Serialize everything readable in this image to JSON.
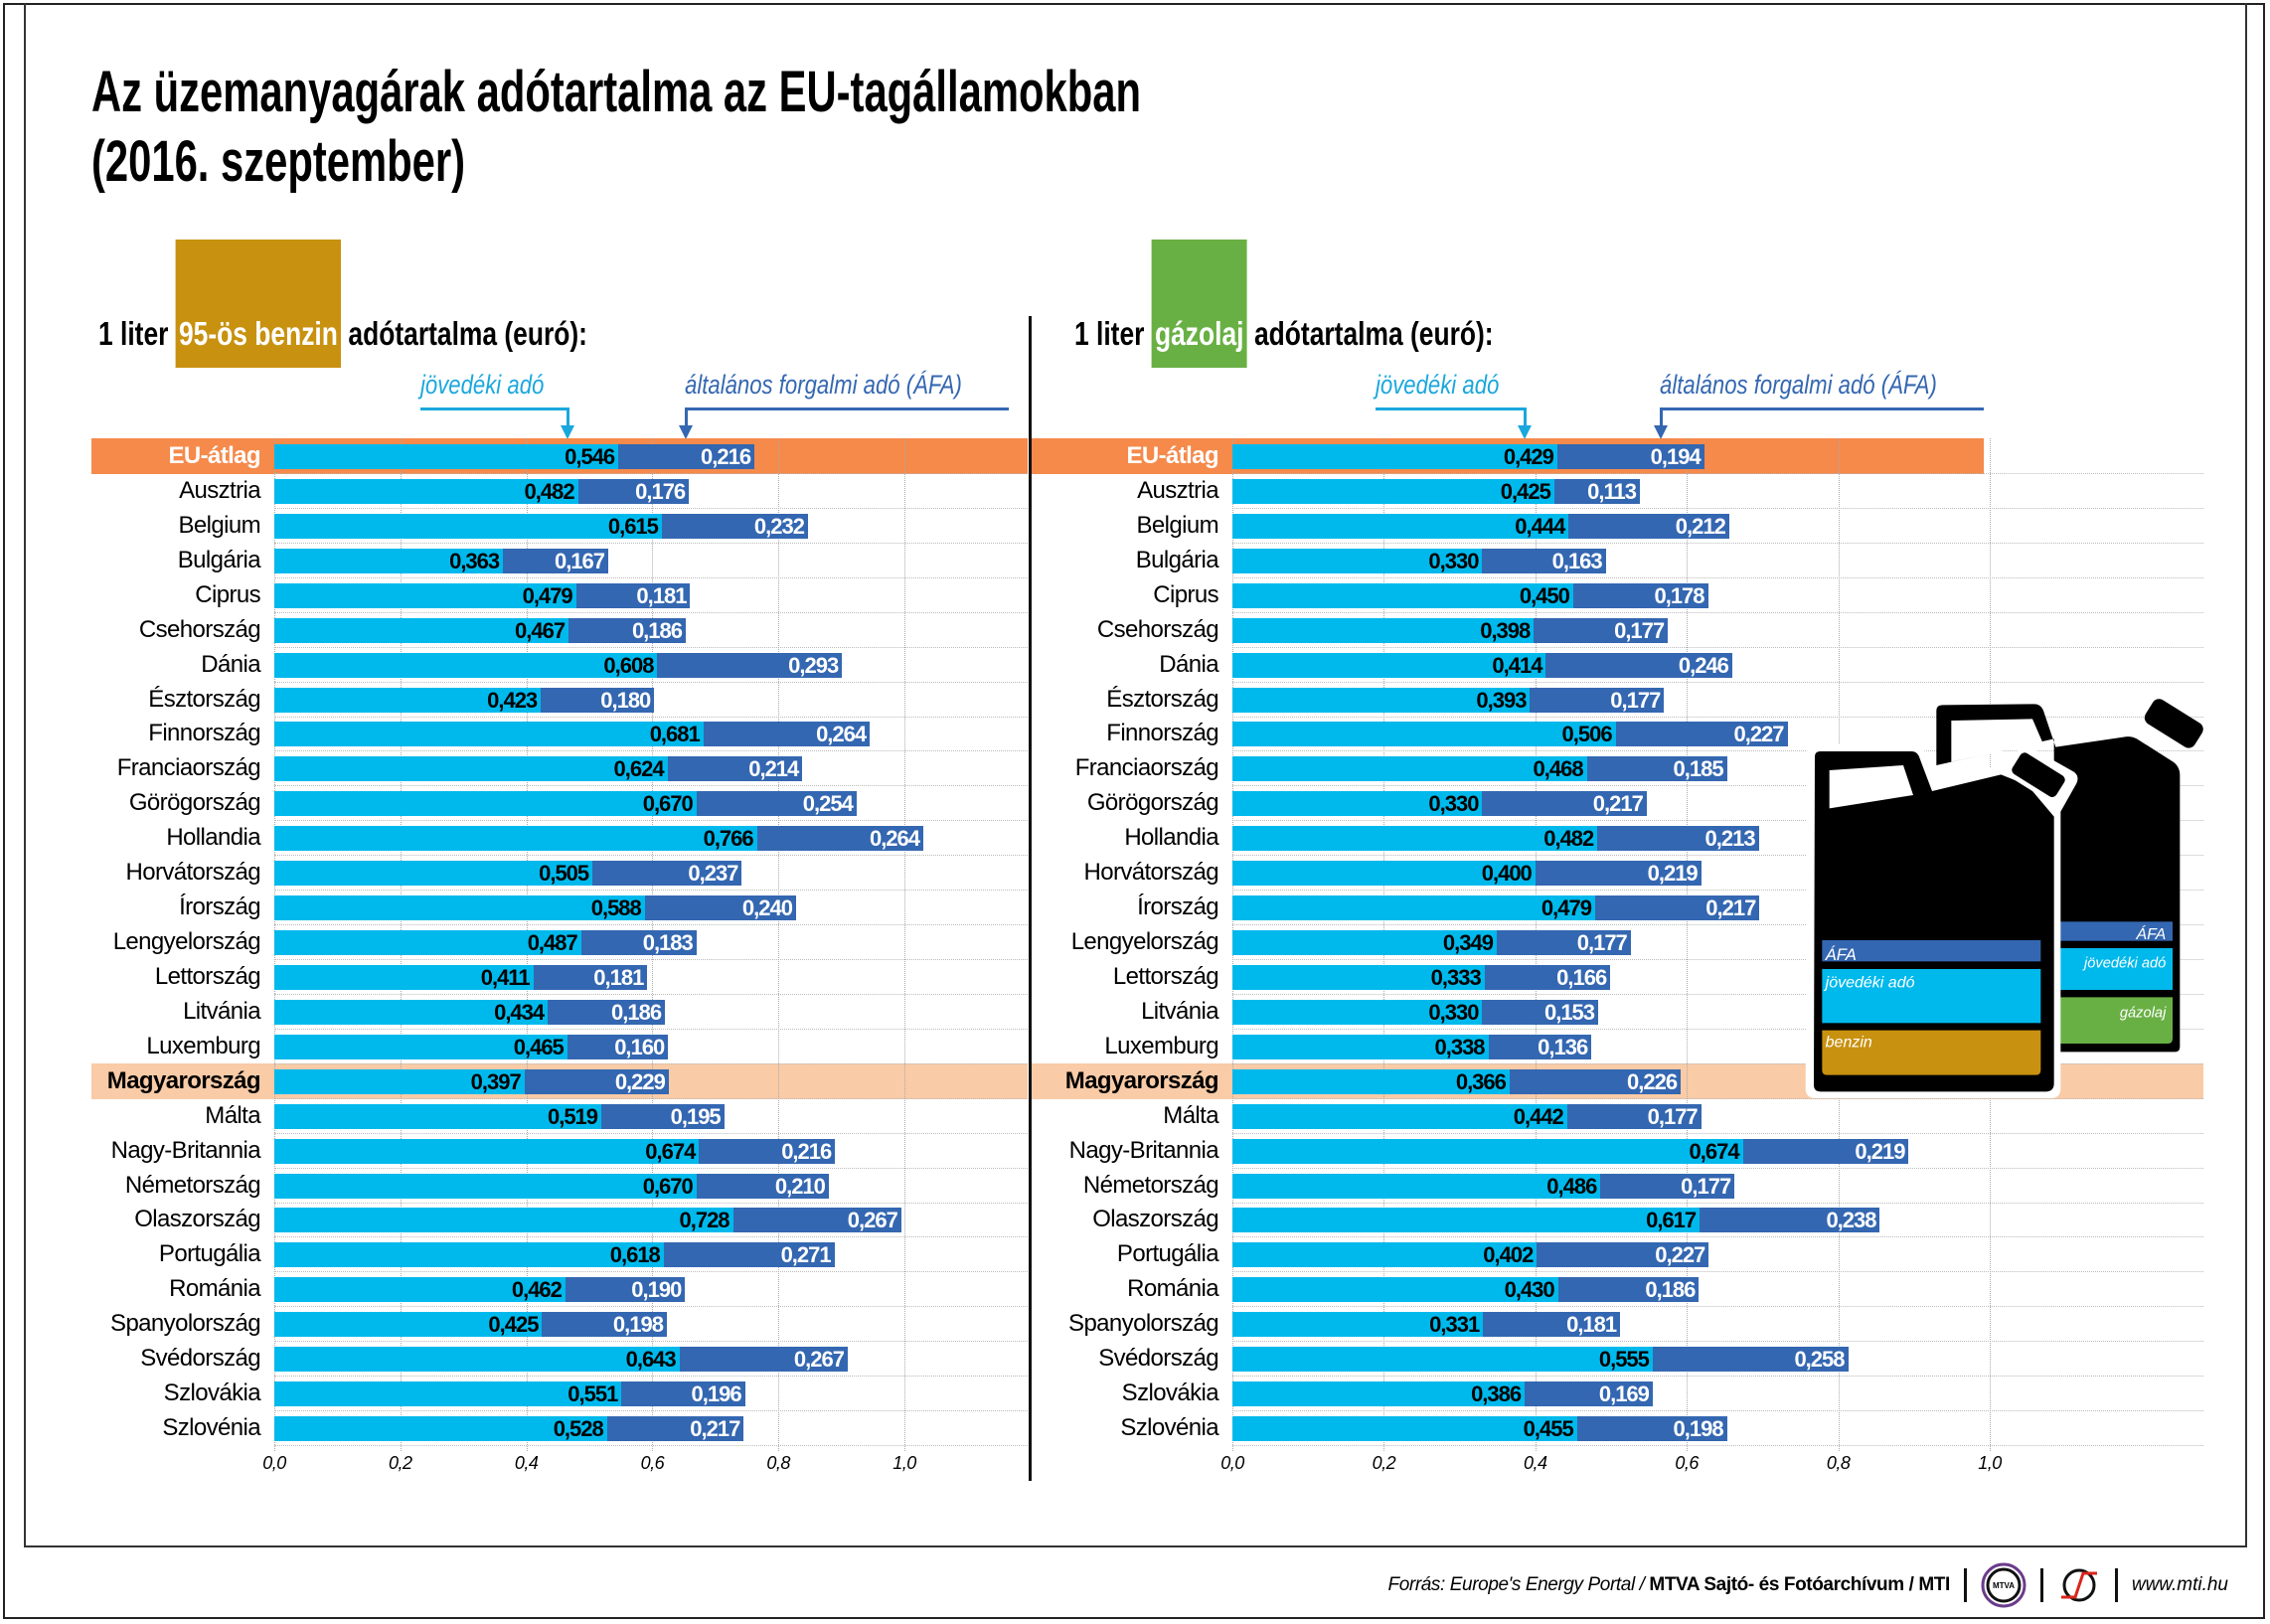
{
  "title": {
    "line1": "Az üzemanyagárak adótartalma az EU-tagállamokban",
    "line2": "(2016. szeptember)"
  },
  "colors": {
    "excise": "#00b9ec",
    "vat": "#3467b1",
    "eu_band": "#f58a4b",
    "hungary_band": "#f9cba7",
    "benzin": "#c8910f",
    "gazolaj": "#69b044",
    "legend_excise_text": "#1aa7dd"
  },
  "legend": {
    "excise": "jövedéki adó",
    "vat": "általános forgalmi adó (ÁFA)"
  },
  "jerrycans": {
    "front": {
      "vat": "ÁFA",
      "excise": "jövedéki adó",
      "fuel": "benzin"
    },
    "back": {
      "vat": "ÁFA",
      "excise": "jövedéki adó",
      "fuel": "gázolaj"
    }
  },
  "chart_data": [
    {
      "type": "bar",
      "stacked": true,
      "orientation": "horizontal",
      "title_prefix": "1 liter",
      "title_highlight": "95-ös benzin",
      "title_suffix": "adótartalma (euró):",
      "xlim": [
        0,
        1.0
      ],
      "xticks": [
        "0,0",
        "0,2",
        "0,4",
        "0,6",
        "0,8",
        "1,0"
      ],
      "grid": true,
      "highlight_rows": {
        "EU-átlag": "orange",
        "Magyarország": "peach"
      },
      "categories": [
        "EU-átlag",
        "Ausztria",
        "Belgium",
        "Bulgária",
        "Ciprus",
        "Csehország",
        "Dánia",
        "Észtország",
        "Finnország",
        "Franciaország",
        "Görögország",
        "Hollandia",
        "Horvátország",
        "Írország",
        "Lengyelország",
        "Lettország",
        "Litvánia",
        "Luxemburg",
        "Magyarország",
        "Málta",
        "Nagy-Britannia",
        "Németország",
        "Olaszország",
        "Portugália",
        "Románia",
        "Spanyolország",
        "Svédország",
        "Szlovákia",
        "Szlovénia"
      ],
      "series": [
        {
          "name": "jövedéki adó",
          "values": [
            0.546,
            0.482,
            0.615,
            0.363,
            0.479,
            0.467,
            0.608,
            0.423,
            0.681,
            0.624,
            0.67,
            0.766,
            0.505,
            0.588,
            0.487,
            0.411,
            0.434,
            0.465,
            0.397,
            0.519,
            0.674,
            0.67,
            0.728,
            0.618,
            0.462,
            0.425,
            0.643,
            0.551,
            0.528
          ]
        },
        {
          "name": "általános forgalmi adó (ÁFA)",
          "values": [
            0.216,
            0.176,
            0.232,
            0.167,
            0.181,
            0.186,
            0.293,
            0.18,
            0.264,
            0.214,
            0.254,
            0.264,
            0.237,
            0.24,
            0.183,
            0.181,
            0.186,
            0.16,
            0.229,
            0.195,
            0.216,
            0.21,
            0.267,
            0.271,
            0.19,
            0.198,
            0.267,
            0.196,
            0.217
          ]
        }
      ]
    },
    {
      "type": "bar",
      "stacked": true,
      "orientation": "horizontal",
      "title_prefix": "1 liter",
      "title_highlight": "gázolaj",
      "title_suffix": "adótartalma (euró):",
      "xlim": [
        0,
        1.0
      ],
      "xticks": [
        "0,0",
        "0,2",
        "0,4",
        "0,6",
        "0,8",
        "1,0"
      ],
      "grid": true,
      "highlight_rows": {
        "EU-átlag": "orange",
        "Magyarország": "peach"
      },
      "categories": [
        "EU-átlag",
        "Ausztria",
        "Belgium",
        "Bulgária",
        "Ciprus",
        "Csehország",
        "Dánia",
        "Észtország",
        "Finnország",
        "Franciaország",
        "Görögország",
        "Hollandia",
        "Horvátország",
        "Írország",
        "Lengyelország",
        "Lettország",
        "Litvánia",
        "Luxemburg",
        "Magyarország",
        "Málta",
        "Nagy-Britannia",
        "Németország",
        "Olaszország",
        "Portugália",
        "Románia",
        "Spanyolország",
        "Svédország",
        "Szlovákia",
        "Szlovénia"
      ],
      "series": [
        {
          "name": "jövedéki adó",
          "values": [
            0.429,
            0.425,
            0.444,
            0.33,
            0.45,
            0.398,
            0.414,
            0.393,
            0.506,
            0.468,
            0.33,
            0.482,
            0.4,
            0.479,
            0.349,
            0.333,
            0.33,
            0.338,
            0.366,
            0.442,
            0.674,
            0.486,
            0.617,
            0.402,
            0.43,
            0.331,
            0.555,
            0.386,
            0.455
          ]
        },
        {
          "name": "általános forgalmi adó (ÁFA)",
          "values": [
            0.194,
            0.113,
            0.212,
            0.163,
            0.178,
            0.177,
            0.246,
            0.177,
            0.227,
            0.185,
            0.217,
            0.213,
            0.219,
            0.217,
            0.177,
            0.166,
            0.153,
            0.136,
            0.226,
            0.177,
            0.219,
            0.177,
            0.238,
            0.227,
            0.186,
            0.181,
            0.258,
            0.169,
            0.198
          ]
        }
      ]
    }
  ],
  "footer": {
    "source_prefix": "Forrás: Europe's Energy Portal / ",
    "source_bold": "MTVA Sajtó- és Fotóarchívum / MTI",
    "mtva_logo": "MTVA",
    "url": "www.mti.hu"
  }
}
